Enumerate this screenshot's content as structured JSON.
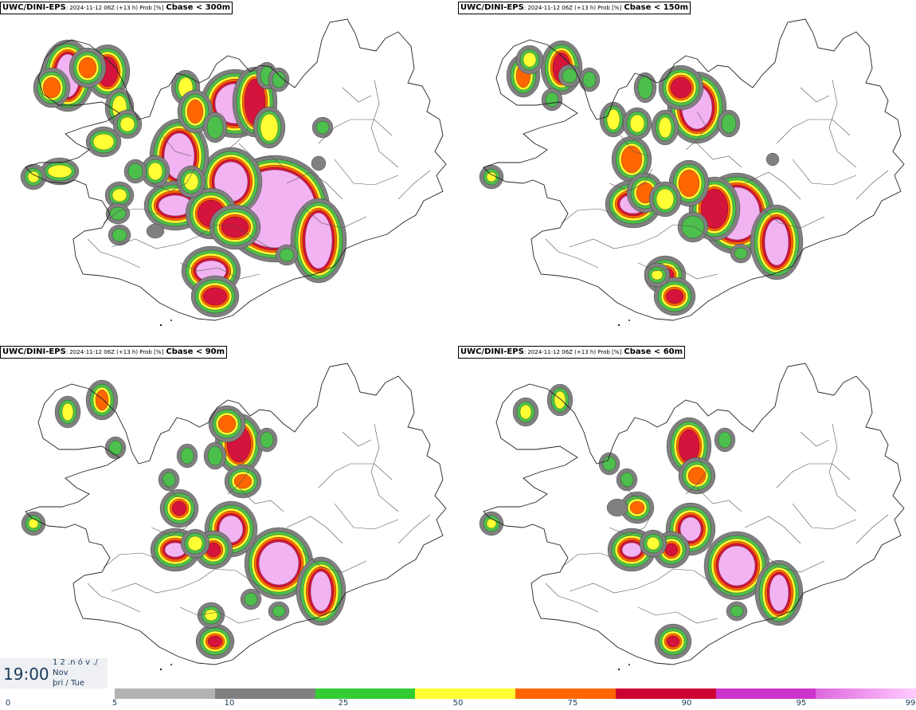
{
  "panels": [
    {
      "model": "UWC/DINI-EPS",
      "meta": ": 2024-11-12 06Z (+13 h) Prob [%]",
      "field": "Cbase < 300m"
    },
    {
      "model": "UWC/DINI-EPS",
      "meta": ": 2024-11-12 06Z (+13 h) Prob [%]",
      "field": "Cbase < 150m"
    },
    {
      "model": "UWC/DINI-EPS",
      "meta": ": 2024-11-12 06Z (+13 h) Prob [%]",
      "field": "Cbase < 90m"
    },
    {
      "model": "UWC/DINI-EPS",
      "meta": ": 2024-11-12 06Z (+13 h) Prob [%]",
      "field": "Cbase < 60m"
    }
  ],
  "valid_time": {
    "time": "19:00",
    "line1": "1 2 .n ó v ./",
    "line2": "Nov",
    "line3": "þri / Tue"
  },
  "legend": {
    "ticks": [
      "0",
      "5",
      "10",
      "25",
      "50",
      "75",
      "90",
      "95",
      "99"
    ],
    "colors": [
      "#b3b3b3",
      "#808080",
      "#33cc33",
      "#ffff33",
      "#ff6600",
      "#cc0033",
      "#cc33cc",
      "#ffccff"
    ]
  },
  "palette": {
    "grey_light": "#b3b3b3",
    "grey_dark": "#808080",
    "green": "#4cbf4c",
    "yellow": "#ffff33",
    "orange": "#ff6600",
    "red": "#d4143c",
    "magenta": "#c832c8",
    "pink": "#f2b3f2"
  }
}
